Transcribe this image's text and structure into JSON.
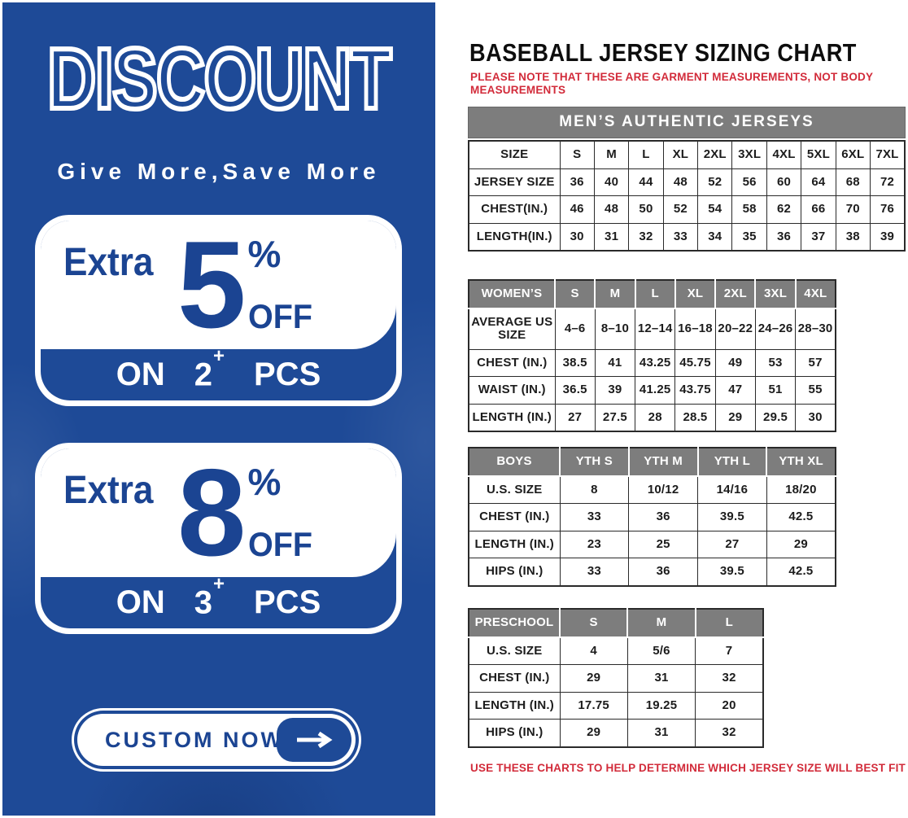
{
  "left_panel": {
    "title": "DISCOUNT",
    "tagline": "Give More,Save More",
    "offers": [
      {
        "extra": "Extra",
        "amount": "5",
        "percent": "%",
        "off": "OFF",
        "on": "ON",
        "qty": "2",
        "plus": "+",
        "pcs": "PCS"
      },
      {
        "extra": "Extra",
        "amount": "8",
        "percent": "%",
        "off": "OFF",
        "on": "ON",
        "qty": "3",
        "plus": "+",
        "pcs": "PCS"
      }
    ],
    "cta": {
      "label": "CUSTOM NOW",
      "icon": "right-arrow-icon"
    }
  },
  "right_panel": {
    "title": "BASEBALL JERSEY SIZING CHART",
    "note_top": "PLEASE NOTE THAT THESE ARE GARMENT MEASUREMENTS, NOT BODY MEASUREMENTS",
    "note_bottom": "USE THESE CHARTS TO HELP DETERMINE WHICH JERSEY SIZE WILL BEST FIT YOU.",
    "tables": [
      {
        "id": "mens",
        "banner": "MEN’S AUTHENTIC JERSEYS",
        "rows": [
          [
            "SIZE",
            "S",
            "M",
            "L",
            "XL",
            "2XL",
            "3XL",
            "4XL",
            "5XL",
            "6XL",
            "7XL"
          ],
          [
            "JERSEY SIZE",
            "36",
            "40",
            "44",
            "48",
            "52",
            "56",
            "60",
            "64",
            "68",
            "72"
          ],
          [
            "CHEST(IN.)",
            "46",
            "48",
            "50",
            "52",
            "54",
            "58",
            "62",
            "66",
            "70",
            "76"
          ],
          [
            "LENGTH(IN.)",
            "30",
            "31",
            "32",
            "33",
            "34",
            "35",
            "36",
            "37",
            "38",
            "39"
          ]
        ]
      },
      {
        "id": "womens",
        "header": [
          "WOMEN’S",
          "S",
          "M",
          "L",
          "XL",
          "2XL",
          "3XL",
          "4XL"
        ],
        "rows": [
          [
            "AVERAGE US SIZE",
            "4–6",
            "8–10",
            "12–14",
            "16–18",
            "20–22",
            "24–26",
            "28–30"
          ],
          [
            "CHEST (IN.)",
            "38.5",
            "41",
            "43.25",
            "45.75",
            "49",
            "53",
            "57"
          ],
          [
            "WAIST (IN.)",
            "36.5",
            "39",
            "41.25",
            "43.75",
            "47",
            "51",
            "55"
          ],
          [
            "LENGTH (IN.)",
            "27",
            "27.5",
            "28",
            "28.5",
            "29",
            "29.5",
            "30"
          ]
        ]
      },
      {
        "id": "boys",
        "header": [
          "BOYS",
          "YTH S",
          "YTH M",
          "YTH L",
          "YTH XL"
        ],
        "rows": [
          [
            "U.S. SIZE",
            "8",
            "10/12",
            "14/16",
            "18/20"
          ],
          [
            "CHEST (IN.)",
            "33",
            "36",
            "39.5",
            "42.5"
          ],
          [
            "LENGTH (IN.)",
            "23",
            "25",
            "27",
            "29"
          ],
          [
            "HIPS (IN.)",
            "33",
            "36",
            "39.5",
            "42.5"
          ]
        ]
      },
      {
        "id": "preschool",
        "header": [
          "PRESCHOOL",
          "S",
          "M",
          "L"
        ],
        "rows": [
          [
            "U.S. SIZE",
            "4",
            "5/6",
            "7"
          ],
          [
            "CHEST (IN.)",
            "29",
            "31",
            "32"
          ],
          [
            "LENGTH (IN.)",
            "17.75",
            "19.25",
            "20"
          ],
          [
            "HIPS (IN.)",
            "29",
            "31",
            "32"
          ]
        ]
      }
    ]
  },
  "colors": {
    "brand_blue": "#1e4a97",
    "header_gray": "#7d7d7d",
    "accent_red": "#d22b3a",
    "text_black": "#1c1c1c"
  }
}
